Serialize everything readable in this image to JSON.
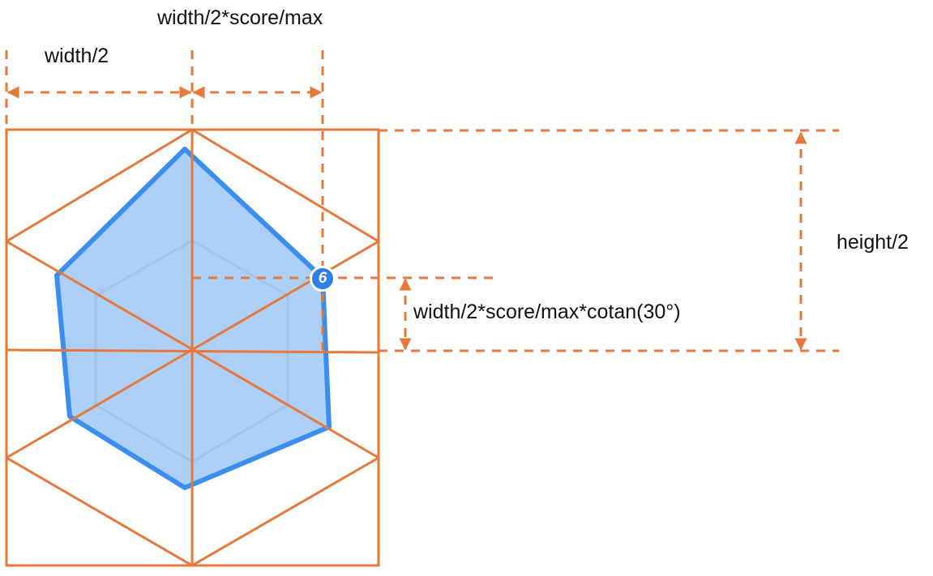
{
  "colors": {
    "frame": "#E8773A",
    "dimension": "#E8773A",
    "polygon_stroke": "#3A8EF0",
    "polygon_fill": "#A6CCF7",
    "guide_hexagon": "#BFD3EC",
    "badge_fill": "#2F7FE8",
    "text": "#111111"
  },
  "labels": {
    "score_width": "width/2*score/max",
    "half_width": "width/2",
    "half_height": "height/2",
    "cotan_offset": "width/2*score/max*cotan(30°)"
  },
  "badge": {
    "number": "6"
  }
}
